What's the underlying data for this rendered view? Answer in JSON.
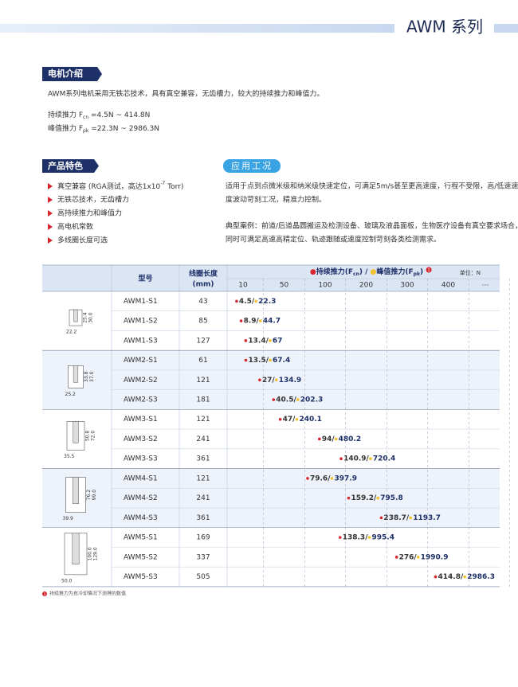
{
  "header": {
    "title": "AWM 系列"
  },
  "intro": {
    "heading": "电机介绍",
    "text": "AWM系列电机采用无铁芯技术，具有真空兼容，无齿槽力，较大的持续推力和峰值力。",
    "specs": [
      {
        "label": "持续推力 F",
        "sub": "cn",
        "value": " =4.5N ~ 414.8N"
      },
      {
        "label": "峰值推力 F",
        "sub": "pk",
        "value": " =22.3N ~ 2986.3N"
      }
    ]
  },
  "features": {
    "heading": "产品特色",
    "first": {
      "pre": "真空兼容 (RGA测试，高达1x10",
      "sup": "-7",
      "post": " Torr)"
    },
    "items": [
      "无铁芯技术，无齿槽力",
      "高持续推力和峰值力",
      "高电机常数",
      "多线圈长度可选"
    ]
  },
  "application": {
    "heading": "应用工况",
    "paragraphs": [
      [
        "适用于点到点微米级和纳米级快速定位，可满足5m/s甚至更高速度，行程不受限，高/低速速",
        "度波动苛刻工况，精准力控制。"
      ],
      [
        "典型案例：前道/后道晶圆搬运及检测设备、玻璃及液晶面板，生物医疗设备有真空要求场合，",
        "同时可满足高速高精定位、轨迹跟随或速度控制苛刻各类检测需求。"
      ]
    ]
  },
  "table": {
    "model_header": "型号",
    "length_header": "线圈长度",
    "length_unit": "(mm)",
    "legend": [
      {
        "pre": "持续推力(F",
        "sub": "cn",
        "post": ")"
      },
      {
        "pre": "峰值推力(F",
        "sub": "pk",
        "post": ")"
      }
    ],
    "legend_separator": " / ",
    "note_mark": "1",
    "unit": "单位：N",
    "ticks": [
      10,
      50,
      100,
      200,
      300,
      400
    ],
    "tick_more": "…",
    "value_separator": " / ",
    "groups": [
      {
        "dims": [
          "22.2",
          "25.4",
          "30.0"
        ],
        "rows": [
          {
            "model": "AWM1-S1",
            "length": 43,
            "continuous": 4.5,
            "peak": 22.3
          },
          {
            "model": "AWM1-S2",
            "length": 85,
            "continuous": 8.9,
            "peak": 44.7
          },
          {
            "model": "AWM1-S3",
            "length": 127,
            "continuous": 13.4,
            "peak": 67.0
          }
        ]
      },
      {
        "dims": [
          "25.2",
          "33.8",
          "37.0"
        ],
        "rows": [
          {
            "model": "AWM2-S1",
            "length": 61,
            "continuous": 13.5,
            "peak": 67.4
          },
          {
            "model": "AWM2-S2",
            "length": 121,
            "continuous": 27.0,
            "peak": 134.9
          },
          {
            "model": "AWM2-S3",
            "length": 181,
            "continuous": 40.5,
            "peak": 202.3
          }
        ]
      },
      {
        "dims": [
          "35.5",
          "50.8",
          "72.0"
        ],
        "rows": [
          {
            "model": "AWM3-S1",
            "length": 121,
            "continuous": 47.0,
            "peak": 240.1
          },
          {
            "model": "AWM3-S2",
            "length": 241,
            "continuous": 94.0,
            "peak": 480.2
          },
          {
            "model": "AWM3-S3",
            "length": 361,
            "continuous": 140.9,
            "peak": 720.4
          }
        ]
      },
      {
        "dims": [
          "39.9",
          "76.2",
          "99.0"
        ],
        "rows": [
          {
            "model": "AWM4-S1",
            "length": 121,
            "continuous": 79.6,
            "peak": 397.9
          },
          {
            "model": "AWM4-S2",
            "length": 241,
            "continuous": 159.2,
            "peak": 795.8
          },
          {
            "model": "AWM4-S3",
            "length": 361,
            "continuous": 238.7,
            "peak": 1193.7
          }
        ]
      },
      {
        "dims": [
          "50.0",
          "100.0",
          "129.0"
        ],
        "rows": [
          {
            "model": "AWM5-S1",
            "length": 169,
            "continuous": 138.3,
            "peak": 995.4
          },
          {
            "model": "AWM5-S2",
            "length": 337,
            "continuous": 276,
            "peak": 1990.9
          },
          {
            "model": "AWM5-S3",
            "length": 505,
            "continuous": 414.8,
            "peak": 2986.3
          }
        ]
      }
    ]
  },
  "footnote": {
    "mark": "1",
    "text": "持续推力为自冷却情况下测得的数值"
  }
}
